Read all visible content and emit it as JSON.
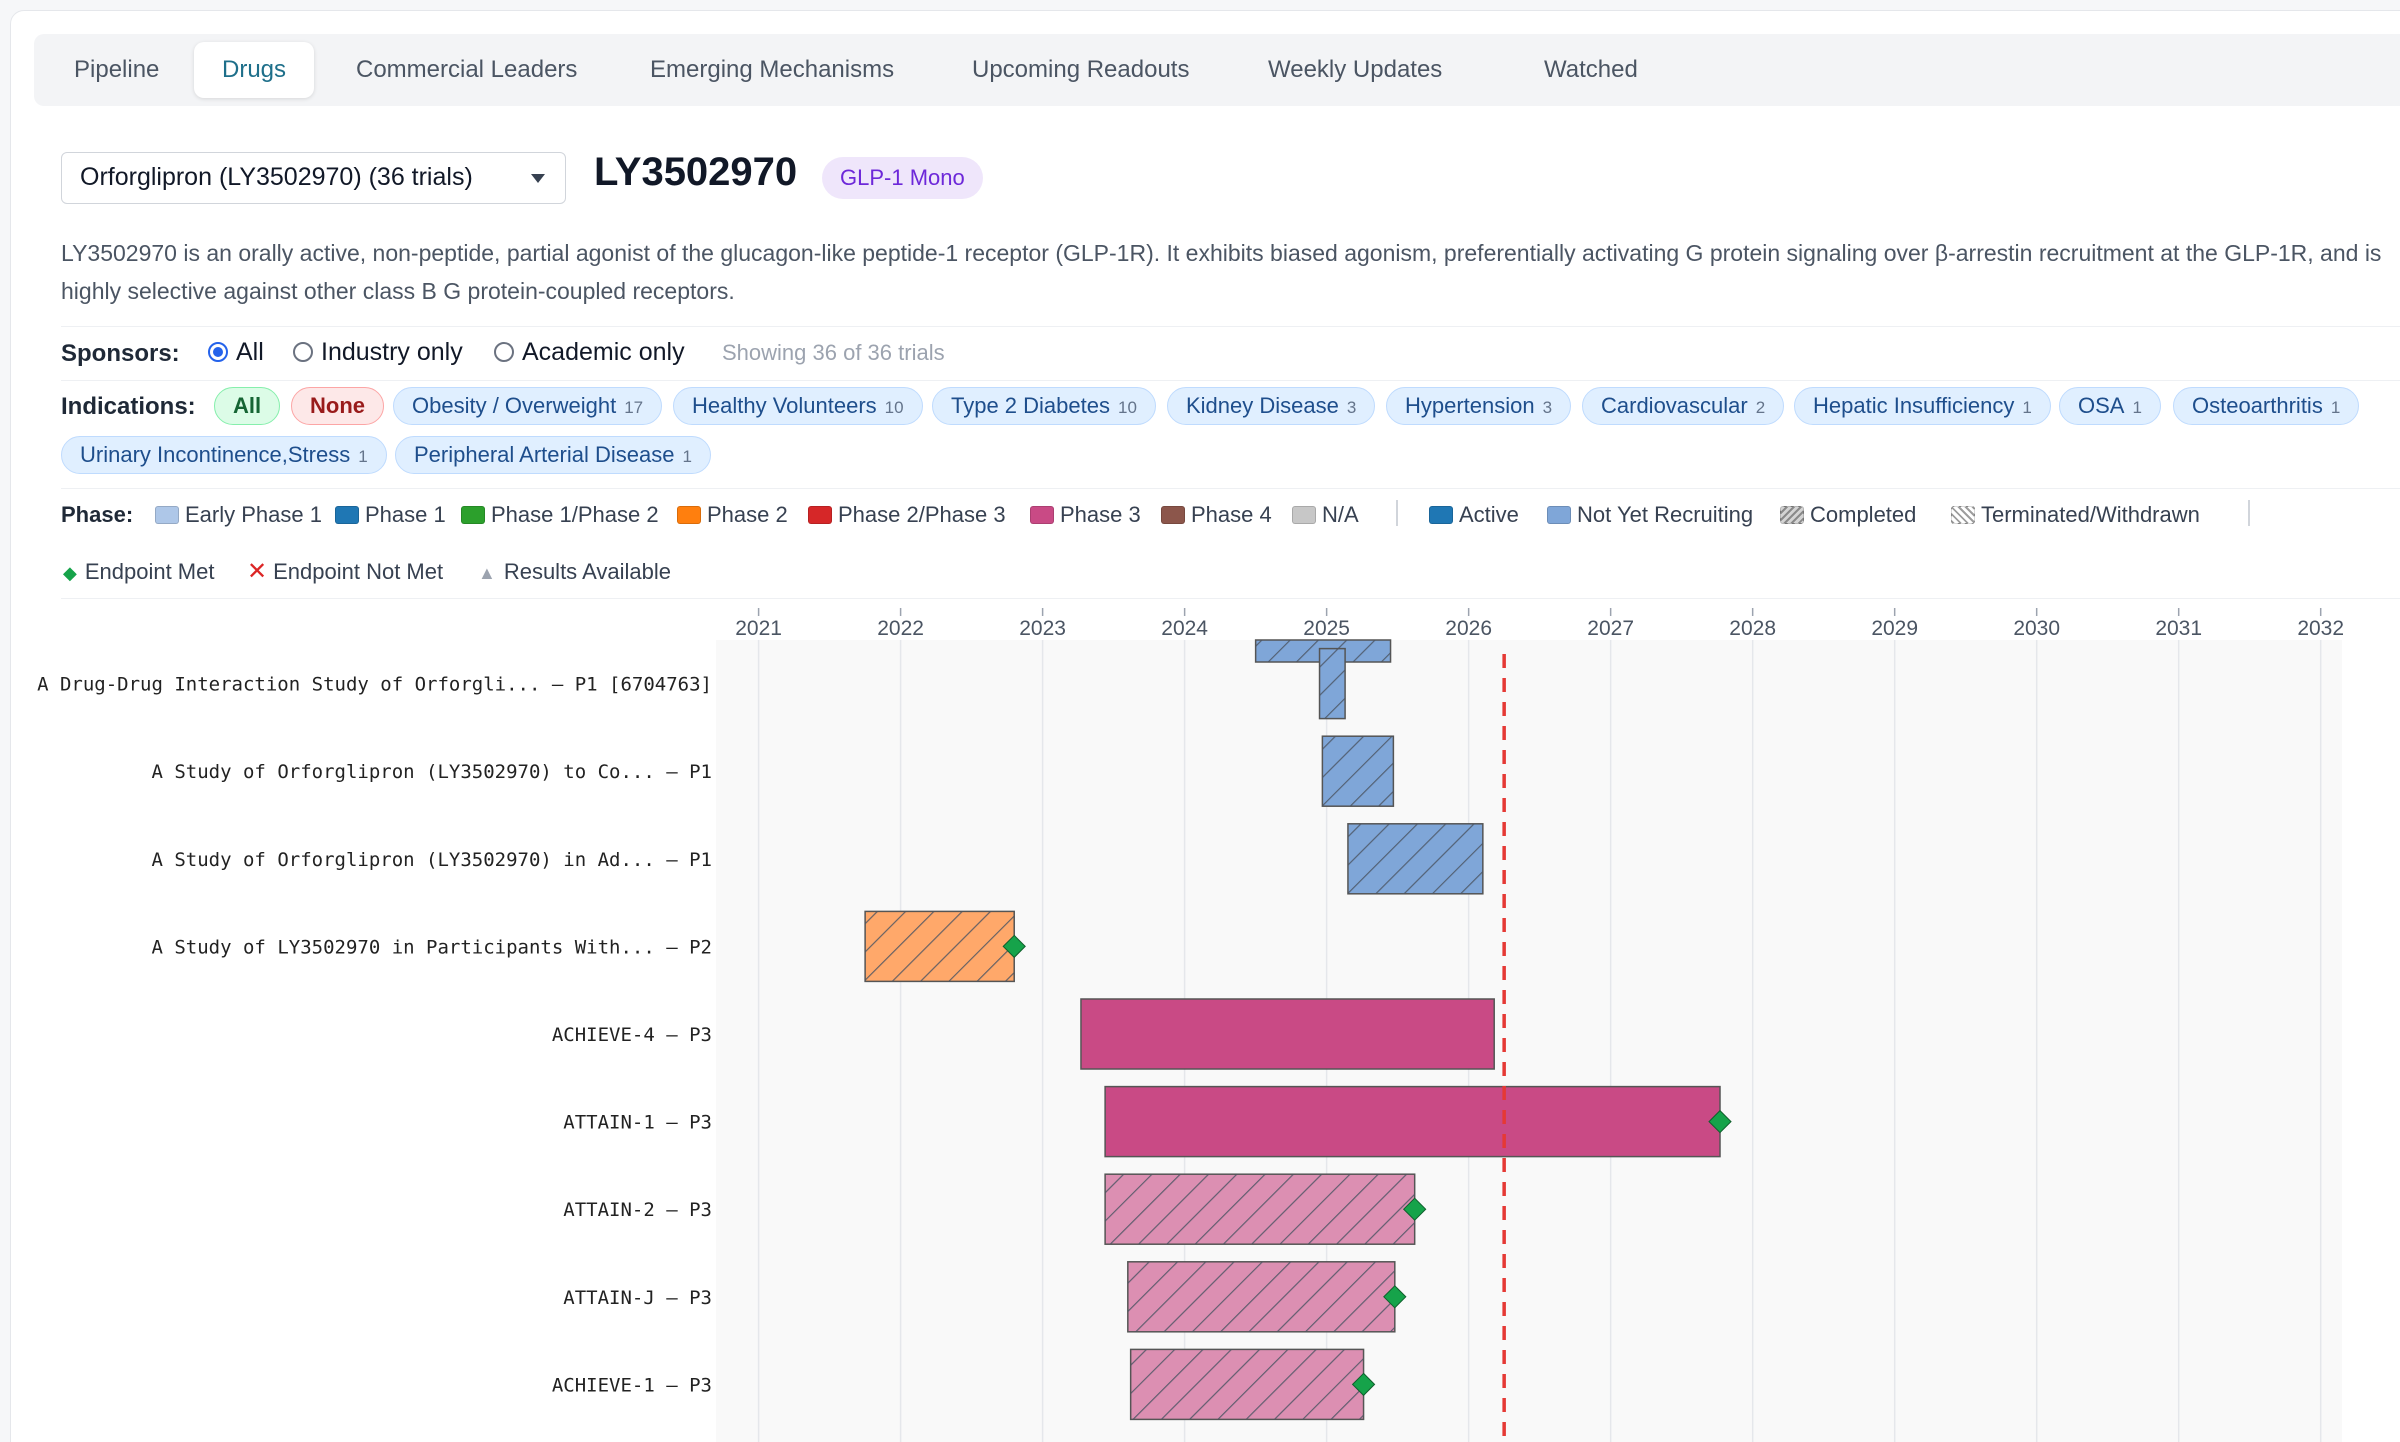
{
  "tabs": [
    {
      "label": "Pipeline",
      "active": false
    },
    {
      "label": "Drugs",
      "active": true
    },
    {
      "label": "Commercial Leaders",
      "active": false
    },
    {
      "label": "Emerging Mechanisms",
      "active": false
    },
    {
      "label": "Upcoming Readouts",
      "active": false
    },
    {
      "label": "Weekly Updates",
      "active": false
    },
    {
      "label": "Watched",
      "active": false
    }
  ],
  "drug": {
    "select_value": "Orforglipron (LY3502970) (36 trials)",
    "title": "LY3502970",
    "badge": "GLP-1 Mono",
    "description": "LY3502970 is an orally active, non-peptide, partial agonist of the glucagon-like peptide-1 receptor (GLP-1R). It exhibits biased agonism, preferentially activating G protein signaling over β-arrestin recruitment at the GLP-1R, and is highly selective against other class B G protein-coupled receptors."
  },
  "sponsors": {
    "label": "Sponsors:",
    "options": [
      "All",
      "Industry only",
      "Academic only"
    ],
    "selected": "All",
    "showing": "Showing 36 of 36 trials"
  },
  "indications": {
    "label": "Indications:",
    "all_label": "All",
    "none_label": "None",
    "chips": [
      {
        "name": "Obesity / Overweight",
        "count": "17"
      },
      {
        "name": "Healthy Volunteers",
        "count": "10"
      },
      {
        "name": "Type 2 Diabetes",
        "count": "10"
      },
      {
        "name": "Kidney Disease",
        "count": "3"
      },
      {
        "name": "Hypertension",
        "count": "3"
      },
      {
        "name": "Cardiovascular",
        "count": "2"
      },
      {
        "name": "Hepatic Insufficiency",
        "count": "1"
      },
      {
        "name": "OSA",
        "count": "1"
      },
      {
        "name": "Osteoarthritis",
        "count": "1"
      },
      {
        "name": "Urinary Incontinence,Stress",
        "count": "1"
      },
      {
        "name": "Peripheral Arterial Disease",
        "count": "1"
      }
    ]
  },
  "legend": {
    "phase_label": "Phase:",
    "phases": [
      {
        "name": "Early Phase 1",
        "color": "#aec7e8"
      },
      {
        "name": "Phase 1",
        "color": "#1f77b4"
      },
      {
        "name": "Phase 1/Phase 2",
        "color": "#2ca02c"
      },
      {
        "name": "Phase 2",
        "color": "#ff7f0e"
      },
      {
        "name": "Phase 2/Phase 3",
        "color": "#d62728"
      },
      {
        "name": "Phase 3",
        "color": "#c94a85"
      },
      {
        "name": "Phase 4",
        "color": "#8c564b"
      },
      {
        "name": "N/A",
        "color": "#c7c7c7"
      }
    ],
    "statuses": [
      {
        "name": "Active",
        "color": "#1f77b4"
      },
      {
        "name": "Not Yet Recruiting",
        "color": "#7fa6d8"
      },
      {
        "name": "Completed",
        "color": "#bdbdbd"
      },
      {
        "name": "Terminated/Withdrawn",
        "color": "#9e9e9e"
      }
    ],
    "markers": [
      {
        "name": "Endpoint Met",
        "color": "#16a34a"
      },
      {
        "name": "Endpoint Not Met",
        "color": "#dc2626"
      },
      {
        "name": "Results Available",
        "color": "#9ca3af"
      }
    ]
  },
  "chart_data": {
    "type": "gantt",
    "x_ticks": [
      "2021",
      "2022",
      "2023",
      "2024",
      "2025",
      "2026",
      "2027",
      "2028",
      "2029",
      "2030",
      "2031",
      "2032"
    ],
    "xlim": [
      2020.7,
      2032.15
    ],
    "today": 2026.25,
    "rows": [
      {
        "label": "",
        "start": 2024.5,
        "end": 2025.45,
        "color": "#7fa6d8",
        "hatch": true,
        "marker": null,
        "partial": true
      },
      {
        "label": "A Drug-Drug Interaction Study of Orforgli... — P1  [6704763]",
        "start": 2024.95,
        "end": 2025.13,
        "color": "#7fa6d8",
        "hatch": true,
        "marker": null
      },
      {
        "label": "A Study of Orforglipron (LY3502970) to Co... — P1",
        "start": 2024.97,
        "end": 2025.47,
        "color": "#7fa6d8",
        "hatch": true,
        "marker": null
      },
      {
        "label": "A Study of Orforglipron (LY3502970) in Ad... — P1",
        "start": 2025.15,
        "end": 2026.1,
        "color": "#7fa6d8",
        "hatch": true,
        "marker": null
      },
      {
        "label": "A Study of LY3502970 in Participants With... — P2",
        "start": 2021.75,
        "end": 2022.8,
        "color": "#ffa86a",
        "hatch": true,
        "marker": "met"
      },
      {
        "label": "ACHIEVE-4 — P3",
        "start": 2023.27,
        "end": 2026.18,
        "color": "#c94a85",
        "hatch": false,
        "marker": null
      },
      {
        "label": "ATTAIN-1 — P3",
        "start": 2023.44,
        "end": 2027.77,
        "color": "#c94a85",
        "hatch": false,
        "marker": "met"
      },
      {
        "label": "ATTAIN-2 — P3",
        "start": 2023.44,
        "end": 2025.62,
        "color": "#dc8fb2",
        "hatch": true,
        "marker": "met"
      },
      {
        "label": "ATTAIN-J — P3",
        "start": 2023.6,
        "end": 2025.48,
        "color": "#dc8fb2",
        "hatch": true,
        "marker": "met"
      },
      {
        "label": "ACHIEVE-1 — P3",
        "start": 2023.62,
        "end": 2025.26,
        "color": "#dc8fb2",
        "hatch": true,
        "marker": "met"
      }
    ]
  }
}
